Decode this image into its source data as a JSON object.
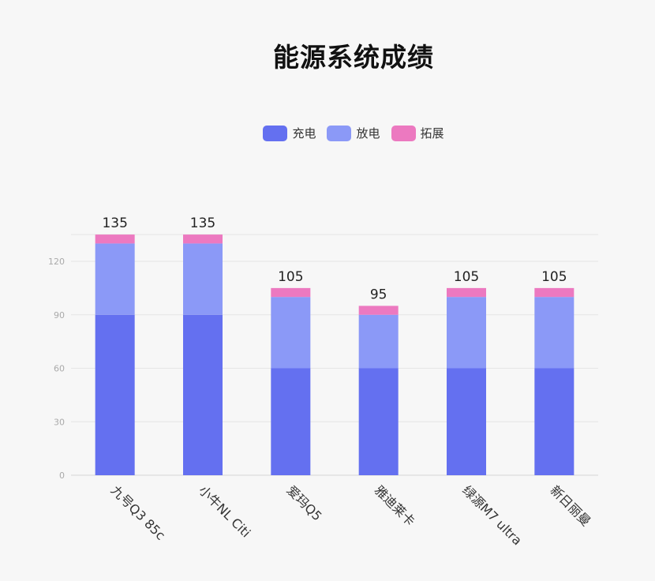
{
  "chart_data": {
    "type": "bar",
    "stacked": true,
    "title": "能源系统成绩",
    "categories": [
      "九号Q3 85c",
      "小牛NL Citi",
      "爱玛Q5",
      "雅迪莱卡",
      "绿源M7 ultra",
      "新日丽曼"
    ],
    "series": [
      {
        "name": "充电",
        "color": "#6470f0",
        "values": [
          90,
          90,
          60,
          60,
          60,
          60
        ]
      },
      {
        "name": "放电",
        "color": "#8b99f7",
        "values": [
          40,
          40,
          40,
          30,
          40,
          40
        ]
      },
      {
        "name": "拓展",
        "color": "#ec79c0",
        "values": [
          5,
          5,
          5,
          5,
          5,
          5
        ]
      }
    ],
    "totals": [
      135,
      135,
      105,
      95,
      105,
      105
    ],
    "yticks": [
      0,
      30,
      60,
      90,
      120
    ],
    "ylim": [
      0,
      135
    ],
    "grid": true,
    "legend_position": "top"
  }
}
